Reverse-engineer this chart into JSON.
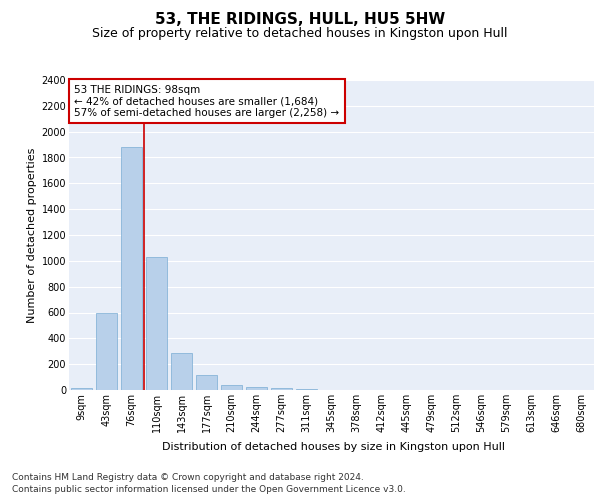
{
  "title": "53, THE RIDINGS, HULL, HU5 5HW",
  "subtitle": "Size of property relative to detached houses in Kingston upon Hull",
  "xlabel": "Distribution of detached houses by size in Kingston upon Hull",
  "ylabel": "Number of detached properties",
  "footer_line1": "Contains HM Land Registry data © Crown copyright and database right 2024.",
  "footer_line2": "Contains public sector information licensed under the Open Government Licence v3.0.",
  "annotation_line1": "53 THE RIDINGS: 98sqm",
  "annotation_line2": "← 42% of detached houses are smaller (1,684)",
  "annotation_line3": "57% of semi-detached houses are larger (2,258) →",
  "bar_color": "#b8d0ea",
  "bar_edge_color": "#7aadd4",
  "vline_color": "#cc0000",
  "background_color": "#e8eef8",
  "grid_color": "#ffffff",
  "annotation_box_color": "#ffffff",
  "annotation_box_edge": "#cc0000",
  "categories": [
    "9sqm",
    "43sqm",
    "76sqm",
    "110sqm",
    "143sqm",
    "177sqm",
    "210sqm",
    "244sqm",
    "277sqm",
    "311sqm",
    "345sqm",
    "378sqm",
    "412sqm",
    "445sqm",
    "479sqm",
    "512sqm",
    "546sqm",
    "579sqm",
    "613sqm",
    "646sqm",
    "680sqm"
  ],
  "values": [
    15,
    600,
    1880,
    1030,
    285,
    115,
    40,
    25,
    15,
    5,
    0,
    0,
    0,
    0,
    0,
    0,
    0,
    0,
    0,
    0,
    0
  ],
  "ylim": [
    0,
    2400
  ],
  "yticks": [
    0,
    200,
    400,
    600,
    800,
    1000,
    1200,
    1400,
    1600,
    1800,
    2000,
    2200,
    2400
  ],
  "vline_x_index": 2.5,
  "title_fontsize": 11,
  "subtitle_fontsize": 9,
  "axis_label_fontsize": 8,
  "ylabel_fontsize": 8,
  "tick_fontsize": 7,
  "annotation_fontsize": 7.5,
  "footer_fontsize": 6.5
}
